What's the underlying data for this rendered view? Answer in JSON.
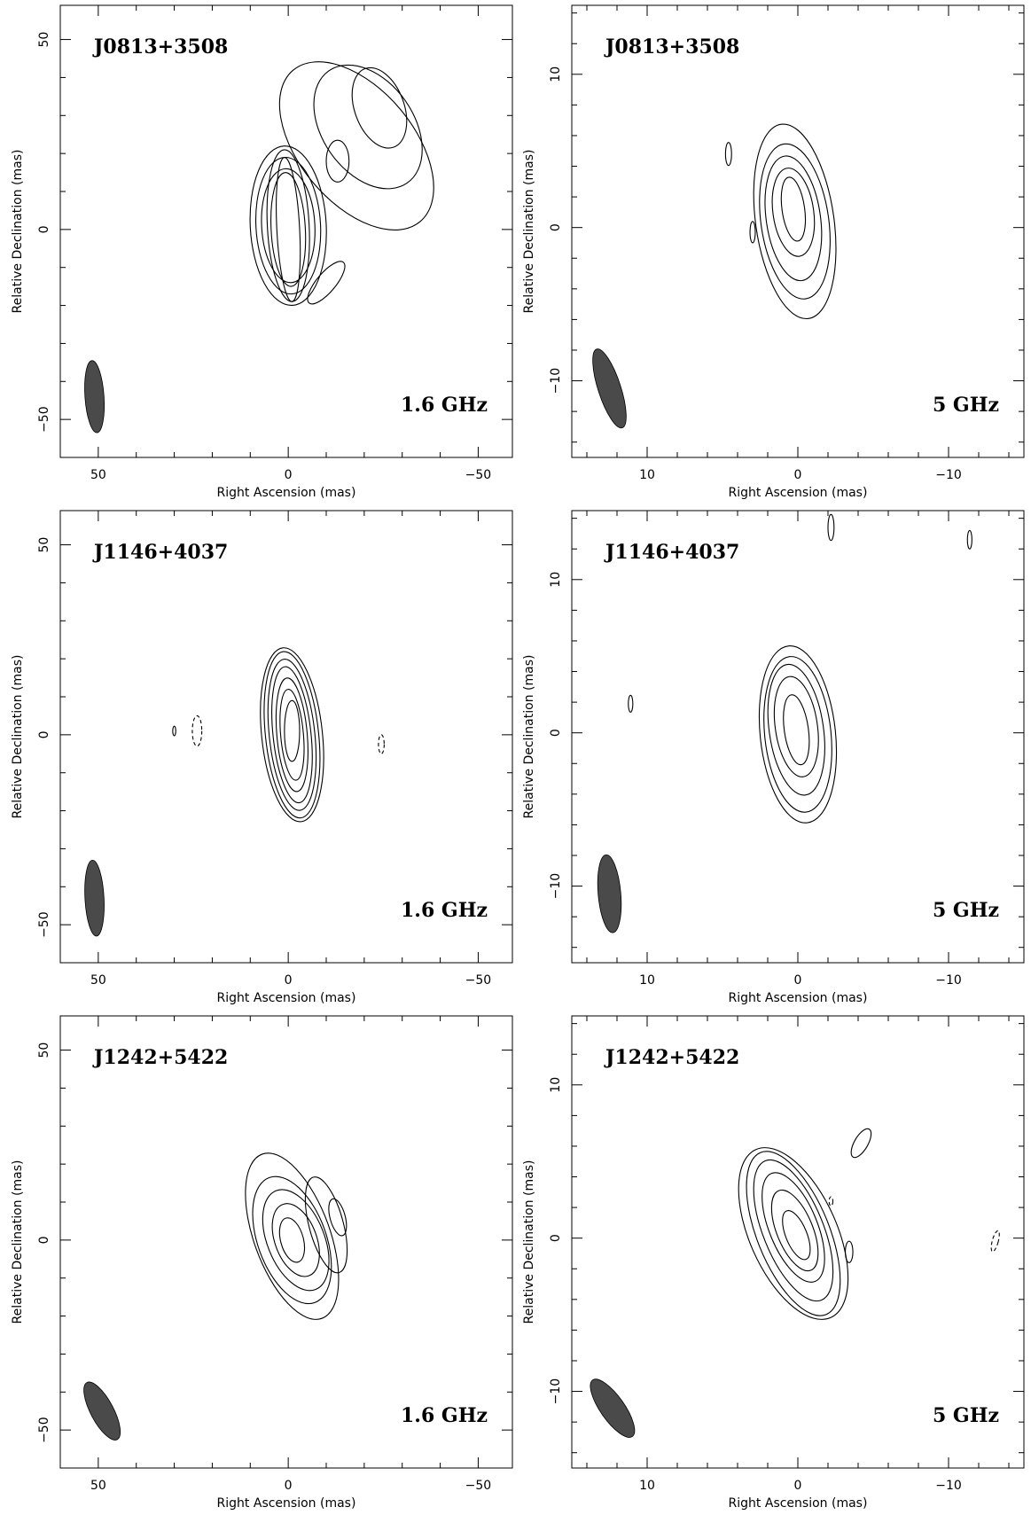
{
  "chart_data": [
    {
      "type": "contour",
      "source": "J0813+3508",
      "frequency": "1.6 GHz",
      "xlabel": "Right Ascension  (mas)",
      "ylabel": "Relative Declination  (mas)",
      "xlim": [
        60,
        -59
      ],
      "ylim": [
        -60,
        59
      ],
      "xticks": [
        50,
        0,
        -50
      ],
      "xtick_labels": [
        "50",
        "0",
        "−50"
      ],
      "yticks": [
        -50,
        0,
        50
      ],
      "ytick_labels": [
        "−50",
        "0",
        "50"
      ],
      "beam": {
        "x": 51,
        "y": -44,
        "major": 19,
        "minor": 5,
        "pa_deg": -4
      },
      "contours": [
        {
          "x": 0,
          "y": 0,
          "w": 6,
          "h": 38,
          "rot": -3
        },
        {
          "x": 0,
          "y": 0,
          "w": 9,
          "h": 30,
          "rot": -3
        },
        {
          "x": 0,
          "y": 1,
          "w": 11,
          "h": 40,
          "rot": -3
        },
        {
          "x": 0,
          "y": 1,
          "w": 14,
          "h": 30,
          "rot": -3
        },
        {
          "x": 0,
          "y": 1,
          "w": 17,
          "h": 36,
          "rot": -3
        },
        {
          "x": 0,
          "y": 1,
          "w": 20,
          "h": 42,
          "rot": -3
        },
        {
          "x": -13,
          "y": 18,
          "w": 6,
          "h": 11,
          "rot": 0
        },
        {
          "x": -24,
          "y": 32,
          "w": 13,
          "h": 22,
          "rot": -20
        },
        {
          "x": -21,
          "y": 27,
          "w": 24,
          "h": 36,
          "rot": -35
        },
        {
          "x": -18,
          "y": 22,
          "w": 30,
          "h": 52,
          "rot": -40
        },
        {
          "x": -10,
          "y": -14,
          "w": 5,
          "h": 14,
          "rot": 40
        }
      ]
    },
    {
      "type": "contour",
      "source": "J0813+3508",
      "frequency": "5 GHz",
      "xlabel": "Right Ascension  (mas)",
      "ylabel": "Relative Declination  (mas)",
      "xlim": [
        15,
        -15
      ],
      "ylim": [
        -15,
        14.5
      ],
      "xticks": [
        10,
        0,
        -10
      ],
      "xtick_labels": [
        "10",
        "0",
        "−10"
      ],
      "yticks": [
        -10,
        0,
        10
      ],
      "ytick_labels": [
        "−10",
        "0",
        "10"
      ],
      "beam": {
        "x": 12.5,
        "y": -10.5,
        "major": 5.4,
        "minor": 1.5,
        "pa_deg": -18
      },
      "contours": [
        {
          "x": 0.3,
          "y": 1.2,
          "w": 1.5,
          "h": 4.2,
          "rot": -8
        },
        {
          "x": 0.3,
          "y": 1.0,
          "w": 2.7,
          "h": 5.8,
          "rot": -8
        },
        {
          "x": 0.3,
          "y": 0.6,
          "w": 3.6,
          "h": 8.2,
          "rot": -8
        },
        {
          "x": 0.2,
          "y": 0.4,
          "w": 4.5,
          "h": 10.2,
          "rot": -8
        },
        {
          "x": 0.2,
          "y": 0.4,
          "w": 5.2,
          "h": 12.8,
          "rot": -8
        },
        {
          "x": 4.6,
          "y": 4.8,
          "w": 0.4,
          "h": 1.5,
          "rot": 0
        },
        {
          "x": 3.0,
          "y": -0.3,
          "w": 0.35,
          "h": 1.4,
          "rot": 0
        }
      ]
    },
    {
      "type": "contour",
      "source": "J1146+4037",
      "frequency": "1.6 GHz",
      "xlabel": "Right Ascension  (mas)",
      "ylabel": "Relative Declination  (mas)",
      "xlim": [
        60,
        -59
      ],
      "ylim": [
        -60,
        59
      ],
      "xticks": [
        50,
        0,
        -50
      ],
      "xtick_labels": [
        "50",
        "0",
        "−50"
      ],
      "yticks": [
        -50,
        0,
        50
      ],
      "ytick_labels": [
        "−50",
        "0",
        "50"
      ],
      "beam": {
        "x": 51,
        "y": -43,
        "major": 20,
        "minor": 5,
        "pa_deg": -3
      },
      "contours": [
        {
          "x": -1,
          "y": 1,
          "w": 4,
          "h": 16,
          "rot": 0
        },
        {
          "x": -1,
          "y": 0,
          "w": 6,
          "h": 24,
          "rot": -5
        },
        {
          "x": -1,
          "y": 0,
          "w": 8,
          "h": 30,
          "rot": -5
        },
        {
          "x": -1,
          "y": 0,
          "w": 10,
          "h": 36,
          "rot": -6
        },
        {
          "x": -1,
          "y": 0,
          "w": 12,
          "h": 40,
          "rot": -6
        },
        {
          "x": -1,
          "y": 0,
          "w": 14,
          "h": 44,
          "rot": -6
        },
        {
          "x": -1,
          "y": 0,
          "w": 16,
          "h": 46,
          "rot": -6
        },
        {
          "x": 24,
          "y": 1,
          "w": 2.5,
          "h": 8,
          "rot": 0,
          "neg": true
        },
        {
          "x": -24.5,
          "y": -2.5,
          "w": 1.5,
          "h": 5,
          "rot": 0,
          "neg": true
        },
        {
          "x": 30,
          "y": 1,
          "w": 0.8,
          "h": 2.5,
          "rot": 0
        }
      ]
    },
    {
      "type": "contour",
      "source": "J1146+4037",
      "frequency": "5 GHz",
      "xlabel": "Right Ascension  (mas)",
      "ylabel": "Relative Declination  (mas)",
      "xlim": [
        15,
        -15
      ],
      "ylim": [
        -15,
        14.5
      ],
      "xticks": [
        10,
        0,
        -10
      ],
      "xtick_labels": [
        "10",
        "0",
        "−10"
      ],
      "yticks": [
        -10,
        0,
        10
      ],
      "ytick_labels": [
        "−10",
        "0",
        "10"
      ],
      "beam": {
        "x": 12.5,
        "y": -10.5,
        "major": 5.1,
        "minor": 1.5,
        "pa_deg": -5
      },
      "contours": [
        {
          "x": 0.1,
          "y": 0.2,
          "w": 1.6,
          "h": 4.6,
          "rot": -8
        },
        {
          "x": 0.1,
          "y": 0.4,
          "w": 2.8,
          "h": 6.6,
          "rot": -8
        },
        {
          "x": 0.1,
          "y": 0.2,
          "w": 3.6,
          "h": 8.6,
          "rot": -8
        },
        {
          "x": 0.0,
          "y": -0.1,
          "w": 4.4,
          "h": 10.2,
          "rot": -6
        },
        {
          "x": 0.0,
          "y": -0.1,
          "w": 5.0,
          "h": 11.6,
          "rot": -6
        },
        {
          "x": -2.2,
          "y": 13.4,
          "w": 0.4,
          "h": 1.7,
          "rot": 0
        },
        {
          "x": -11.4,
          "y": 12.6,
          "w": 0.3,
          "h": 1.2,
          "rot": 0
        },
        {
          "x": 11.1,
          "y": 1.9,
          "w": 0.3,
          "h": 1.1,
          "rot": 0
        }
      ]
    },
    {
      "type": "contour",
      "source": "J1242+5422",
      "frequency": "1.6 GHz",
      "xlabel": "Right Ascension  (mas)",
      "ylabel": "Relative Declination  (mas)",
      "xlim": [
        60,
        -59
      ],
      "ylim": [
        -60,
        59
      ],
      "xticks": [
        50,
        0,
        -50
      ],
      "xtick_labels": [
        "50",
        "0",
        "−50"
      ],
      "yticks": [
        -50,
        0,
        50
      ],
      "ytick_labels": [
        "−50",
        "0",
        "50"
      ],
      "beam": {
        "x": 49,
        "y": -45,
        "major": 17,
        "minor": 6,
        "pa_deg": -28
      },
      "contours": [
        {
          "x": -1,
          "y": 0,
          "w": 6,
          "h": 12,
          "rot": -15
        },
        {
          "x": -2,
          "y": 0,
          "w": 11,
          "h": 20,
          "rot": -20
        },
        {
          "x": -2,
          "y": 0,
          "w": 15,
          "h": 28,
          "rot": -22
        },
        {
          "x": -1,
          "y": 0,
          "w": 18,
          "h": 35,
          "rot": -20
        },
        {
          "x": -1,
          "y": 1,
          "w": 20,
          "h": 46,
          "rot": -20
        },
        {
          "x": -13,
          "y": 6,
          "w": 4,
          "h": 10,
          "rot": -15
        },
        {
          "x": -10,
          "y": 4,
          "w": 9,
          "h": 26,
          "rot": -15
        }
      ]
    },
    {
      "type": "contour",
      "source": "J1242+5422",
      "frequency": "5 GHz",
      "xlabel": "Right Ascension  (mas)",
      "ylabel": "Relative Declination  (mas)",
      "xlim": [
        15,
        -15
      ],
      "ylim": [
        -15,
        14.5
      ],
      "xticks": [
        10,
        0,
        -10
      ],
      "xtick_labels": [
        "10",
        "0",
        "−10"
      ],
      "yticks": [
        -10,
        0,
        10
      ],
      "ytick_labels": [
        "−10",
        "0",
        "10"
      ],
      "beam": {
        "x": 12.3,
        "y": -11.1,
        "major": 4.5,
        "minor": 1.6,
        "pa_deg": -35
      },
      "contours": [
        {
          "x": 0.1,
          "y": 0.2,
          "w": 1.4,
          "h": 3.4,
          "rot": -22
        },
        {
          "x": 0.2,
          "y": 0.5,
          "w": 2.4,
          "h": 5.6,
          "rot": -22
        },
        {
          "x": 0.3,
          "y": 0.7,
          "w": 3.2,
          "h": 7.6,
          "rot": -22
        },
        {
          "x": 0.3,
          "y": 0.5,
          "w": 4.0,
          "h": 9.8,
          "rot": -22
        },
        {
          "x": 0.3,
          "y": 0.3,
          "w": 4.8,
          "h": 11.4,
          "rot": -22
        },
        {
          "x": 0.3,
          "y": 0.3,
          "w": 5.8,
          "h": 12.0,
          "rot": -24
        },
        {
          "x": -4.2,
          "y": 6.2,
          "w": 0.9,
          "h": 2.1,
          "rot": 30
        },
        {
          "x": -3.4,
          "y": -0.9,
          "w": 0.5,
          "h": 1.4,
          "rot": 0
        },
        {
          "x": -2.2,
          "y": 2.4,
          "w": 0.25,
          "h": 0.6,
          "rot": 0,
          "neg": true
        },
        {
          "x": -13.1,
          "y": -0.2,
          "w": 0.4,
          "h": 1.4,
          "rot": 15,
          "neg": true
        }
      ]
    }
  ]
}
